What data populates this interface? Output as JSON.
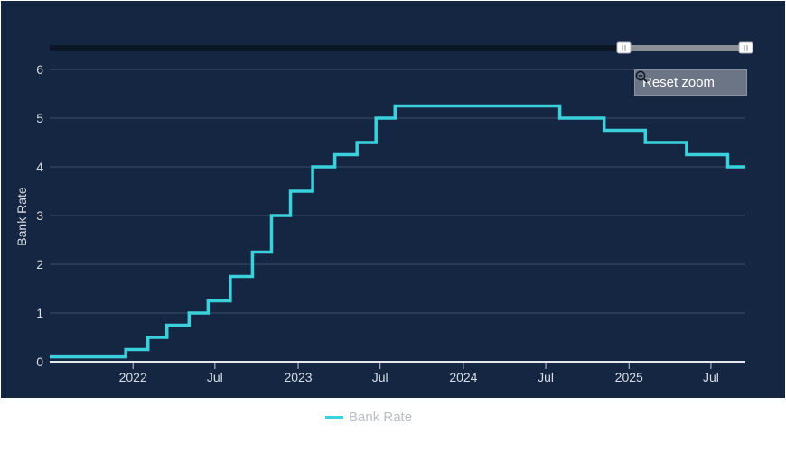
{
  "colors": {
    "background": "#142641",
    "series": "#3bd1dc",
    "gridline": "#3b4d66",
    "navigator_track": "#0b1627",
    "navigator_selection": "#8a8f96"
  },
  "reset_zoom": {
    "label": "Reset zoom",
    "icon": "zoom-out-icon"
  },
  "legend": {
    "label": "Bank Rate"
  },
  "navigator": {
    "selection_start_fraction": 0.82,
    "selection_end_fraction": 1.0
  },
  "chart_data": {
    "type": "line",
    "step": true,
    "title": "",
    "xlabel": "",
    "ylabel": "Bank Rate",
    "ylim": [
      0,
      6
    ],
    "xlim": [
      "2021-07-01",
      "2025-09-15"
    ],
    "yticks": [
      0,
      1,
      2,
      3,
      4,
      5,
      6
    ],
    "xticks": [
      {
        "date": "2022-01-01",
        "label": "2022"
      },
      {
        "date": "2022-07-01",
        "label": "Jul"
      },
      {
        "date": "2023-01-01",
        "label": "2023"
      },
      {
        "date": "2023-07-01",
        "label": "Jul"
      },
      {
        "date": "2024-01-01",
        "label": "2024"
      },
      {
        "date": "2024-07-01",
        "label": "Jul"
      },
      {
        "date": "2025-01-01",
        "label": "2025"
      },
      {
        "date": "2025-07-01",
        "label": "Jul"
      }
    ],
    "grid": true,
    "legend_position": "bottom",
    "series": [
      {
        "name": "Bank Rate",
        "points": [
          {
            "x": "2021-07-01",
            "y": 0.1
          },
          {
            "x": "2021-12-16",
            "y": 0.25
          },
          {
            "x": "2022-02-03",
            "y": 0.5
          },
          {
            "x": "2022-03-17",
            "y": 0.75
          },
          {
            "x": "2022-05-05",
            "y": 1.0
          },
          {
            "x": "2022-06-16",
            "y": 1.25
          },
          {
            "x": "2022-08-04",
            "y": 1.75
          },
          {
            "x": "2022-09-22",
            "y": 2.25
          },
          {
            "x": "2022-11-03",
            "y": 3.0
          },
          {
            "x": "2022-12-15",
            "y": 3.5
          },
          {
            "x": "2023-02-02",
            "y": 4.0
          },
          {
            "x": "2023-03-23",
            "y": 4.25
          },
          {
            "x": "2023-05-11",
            "y": 4.5
          },
          {
            "x": "2023-06-22",
            "y": 5.0
          },
          {
            "x": "2023-08-03",
            "y": 5.25
          },
          {
            "x": "2024-08-01",
            "y": 5.0
          },
          {
            "x": "2024-11-07",
            "y": 4.75
          },
          {
            "x": "2025-02-06",
            "y": 4.5
          },
          {
            "x": "2025-05-08",
            "y": 4.25
          },
          {
            "x": "2025-08-07",
            "y": 4.0
          },
          {
            "x": "2025-09-15",
            "y": 4.0
          }
        ]
      }
    ]
  }
}
